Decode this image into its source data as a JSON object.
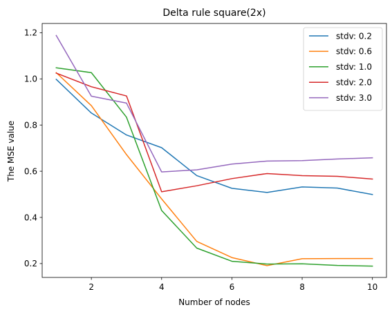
{
  "chart_data": {
    "type": "line",
    "title": "Delta rule square(2x)",
    "xlabel": "Number of nodes",
    "ylabel": "The MSE value",
    "xlim": [
      0.6,
      10.4
    ],
    "ylim": [
      0.14,
      1.24
    ],
    "xticks": [
      2,
      4,
      6,
      8,
      10
    ],
    "yticks": [
      0.2,
      0.4,
      0.6,
      0.8,
      1.0,
      1.2
    ],
    "ytick_labels": [
      "0.2",
      "0.4",
      "0.6",
      "0.8",
      "1.0",
      "1.2"
    ],
    "grid": false,
    "legend_position": "top-right",
    "x": [
      1,
      2,
      3,
      4,
      5,
      6,
      7,
      8,
      9,
      10
    ],
    "series": [
      {
        "name": "stdv: 0.2",
        "color": "#1f77b4",
        "values": [
          0.998,
          0.852,
          0.757,
          0.702,
          0.581,
          0.526,
          0.508,
          0.532,
          0.527,
          0.499
        ]
      },
      {
        "name": "stdv: 0.6",
        "color": "#ff7f0e",
        "values": [
          1.027,
          0.884,
          0.672,
          0.48,
          0.296,
          0.226,
          0.191,
          0.221,
          0.222,
          0.222
        ]
      },
      {
        "name": "stdv: 1.0",
        "color": "#2ca02c",
        "values": [
          1.048,
          1.027,
          0.834,
          0.43,
          0.267,
          0.21,
          0.198,
          0.199,
          0.192,
          0.189
        ]
      },
      {
        "name": "stdv: 2.0",
        "color": "#d62728",
        "values": [
          1.025,
          0.966,
          0.926,
          0.511,
          0.537,
          0.568,
          0.59,
          0.581,
          0.578,
          0.566
        ]
      },
      {
        "name": "stdv: 3.0",
        "color": "#9467bd",
        "values": [
          1.188,
          0.925,
          0.895,
          0.597,
          0.606,
          0.631,
          0.644,
          0.646,
          0.653,
          0.658
        ]
      }
    ]
  }
}
